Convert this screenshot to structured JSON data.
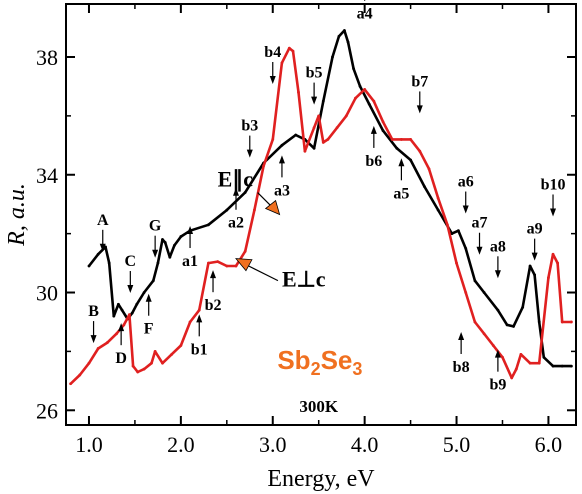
{
  "chart_data": {
    "type": "line",
    "xlabel": "Energy, eV",
    "ylabel": "R, a.u.",
    "xlim": [
      0.75,
      6.3
    ],
    "ylim": [
      25.5,
      39.8
    ],
    "xticks": [
      "1.0",
      "2.0",
      "3.0",
      "4.0",
      "5.0",
      "6.0"
    ],
    "yticks": [
      "26",
      "30",
      "34",
      "38"
    ],
    "sample": "Sb2Se3",
    "temperature": "300K",
    "series": [
      {
        "name": "E∥c",
        "color": "#000000",
        "x": [
          1.0,
          1.1,
          1.18,
          1.22,
          1.27,
          1.32,
          1.36,
          1.42,
          1.47,
          1.52,
          1.6,
          1.7,
          1.75,
          1.8,
          1.83,
          1.88,
          1.93,
          2.0,
          2.1,
          2.3,
          2.5,
          2.7,
          2.9,
          3.1,
          3.25,
          3.35,
          3.45,
          3.55,
          3.65,
          3.72,
          3.78,
          3.82,
          3.88,
          3.95,
          4.05,
          4.2,
          4.35,
          4.5,
          4.65,
          4.8,
          4.95,
          5.02,
          5.1,
          5.2,
          5.3,
          5.45,
          5.55,
          5.62,
          5.72,
          5.8,
          5.85,
          5.9,
          5.95,
          6.05,
          6.15,
          6.25
        ],
        "y": [
          30.9,
          31.3,
          31.55,
          31.0,
          29.2,
          29.6,
          29.4,
          29.1,
          29.3,
          29.6,
          30.0,
          30.4,
          31.0,
          31.8,
          31.7,
          31.2,
          31.6,
          31.9,
          32.1,
          32.3,
          32.8,
          33.4,
          34.4,
          35.0,
          35.35,
          35.2,
          34.9,
          36.5,
          38.0,
          38.7,
          38.9,
          38.5,
          37.6,
          37.0,
          36.4,
          35.5,
          34.9,
          34.5,
          33.6,
          32.8,
          32.0,
          32.1,
          31.5,
          30.4,
          30.0,
          29.4,
          28.9,
          28.85,
          29.5,
          30.9,
          30.6,
          29.0,
          27.8,
          27.5,
          27.5,
          27.5
        ]
      },
      {
        "name": "E⊥c",
        "color": "#e02020",
        "x": [
          0.8,
          0.9,
          1.0,
          1.1,
          1.2,
          1.3,
          1.38,
          1.44,
          1.48,
          1.53,
          1.6,
          1.68,
          1.72,
          1.8,
          1.9,
          2.0,
          2.1,
          2.2,
          2.3,
          2.4,
          2.5,
          2.6,
          2.7,
          2.8,
          2.9,
          3.0,
          3.1,
          3.18,
          3.22,
          3.28,
          3.35,
          3.45,
          3.5,
          3.55,
          3.6,
          3.7,
          3.8,
          3.9,
          4.0,
          4.1,
          4.2,
          4.3,
          4.4,
          4.5,
          4.6,
          4.7,
          4.8,
          4.9,
          5.0,
          5.1,
          5.2,
          5.3,
          5.4,
          5.5,
          5.6,
          5.65,
          5.7,
          5.8,
          5.9,
          6.0,
          6.05,
          6.1,
          6.15,
          6.25
        ],
        "y": [
          26.9,
          27.2,
          27.6,
          28.1,
          28.3,
          28.6,
          28.9,
          29.25,
          27.5,
          27.3,
          27.4,
          27.6,
          28.0,
          27.6,
          27.9,
          28.2,
          29.0,
          29.4,
          31.0,
          31.05,
          30.9,
          30.9,
          31.4,
          32.8,
          34.3,
          35.2,
          37.8,
          38.3,
          38.2,
          36.8,
          34.8,
          35.6,
          36.0,
          35.1,
          35.2,
          35.6,
          36.0,
          36.6,
          36.9,
          36.5,
          35.8,
          35.2,
          35.2,
          35.2,
          34.8,
          34.2,
          33.2,
          32.3,
          31.0,
          30.0,
          29.0,
          28.6,
          28.2,
          27.8,
          27.1,
          27.4,
          27.9,
          27.6,
          27.6,
          30.5,
          31.3,
          31.0,
          29.0,
          29.0
        ]
      }
    ],
    "peak_labels": [
      {
        "text": "A",
        "x": 1.15,
        "y": 32.3
      },
      {
        "text": "B",
        "x": 1.05,
        "y": 29.2
      },
      {
        "text": "C",
        "x": 1.45,
        "y": 30.9
      },
      {
        "text": "D",
        "x": 1.35,
        "y": 27.6
      },
      {
        "text": "F",
        "x": 1.65,
        "y": 28.6
      },
      {
        "text": "G",
        "x": 1.72,
        "y": 32.1
      },
      {
        "text": "a1",
        "x": 2.1,
        "y": 30.9
      },
      {
        "text": "a2",
        "x": 2.6,
        "y": 32.2
      },
      {
        "text": "a3",
        "x": 3.1,
        "y": 33.3
      },
      {
        "text": "a4",
        "x": 4.0,
        "y": 39.3
      },
      {
        "text": "a5",
        "x": 4.4,
        "y": 33.2
      },
      {
        "text": "a6",
        "x": 5.1,
        "y": 33.6
      },
      {
        "text": "a7",
        "x": 5.25,
        "y": 32.2
      },
      {
        "text": "a8",
        "x": 5.45,
        "y": 31.4
      },
      {
        "text": "a9",
        "x": 5.85,
        "y": 32.0
      },
      {
        "text": "b1",
        "x": 2.2,
        "y": 27.9
      },
      {
        "text": "b2",
        "x": 2.35,
        "y": 29.4
      },
      {
        "text": "b3",
        "x": 2.75,
        "y": 35.5
      },
      {
        "text": "b4",
        "x": 3.0,
        "y": 38.0
      },
      {
        "text": "b5",
        "x": 3.45,
        "y": 37.3
      },
      {
        "text": "b6",
        "x": 4.1,
        "y": 34.3
      },
      {
        "text": "b7",
        "x": 4.6,
        "y": 37.0
      },
      {
        "text": "b8",
        "x": 5.05,
        "y": 27.3
      },
      {
        "text": "b9",
        "x": 5.45,
        "y": 26.7
      },
      {
        "text": "b10",
        "x": 6.05,
        "y": 33.5
      }
    ],
    "polarization_labels": [
      {
        "text": "E∥c",
        "x": 2.4,
        "y": 33.6
      },
      {
        "text": "E⊥c",
        "x": 3.1,
        "y": 30.2
      }
    ]
  }
}
